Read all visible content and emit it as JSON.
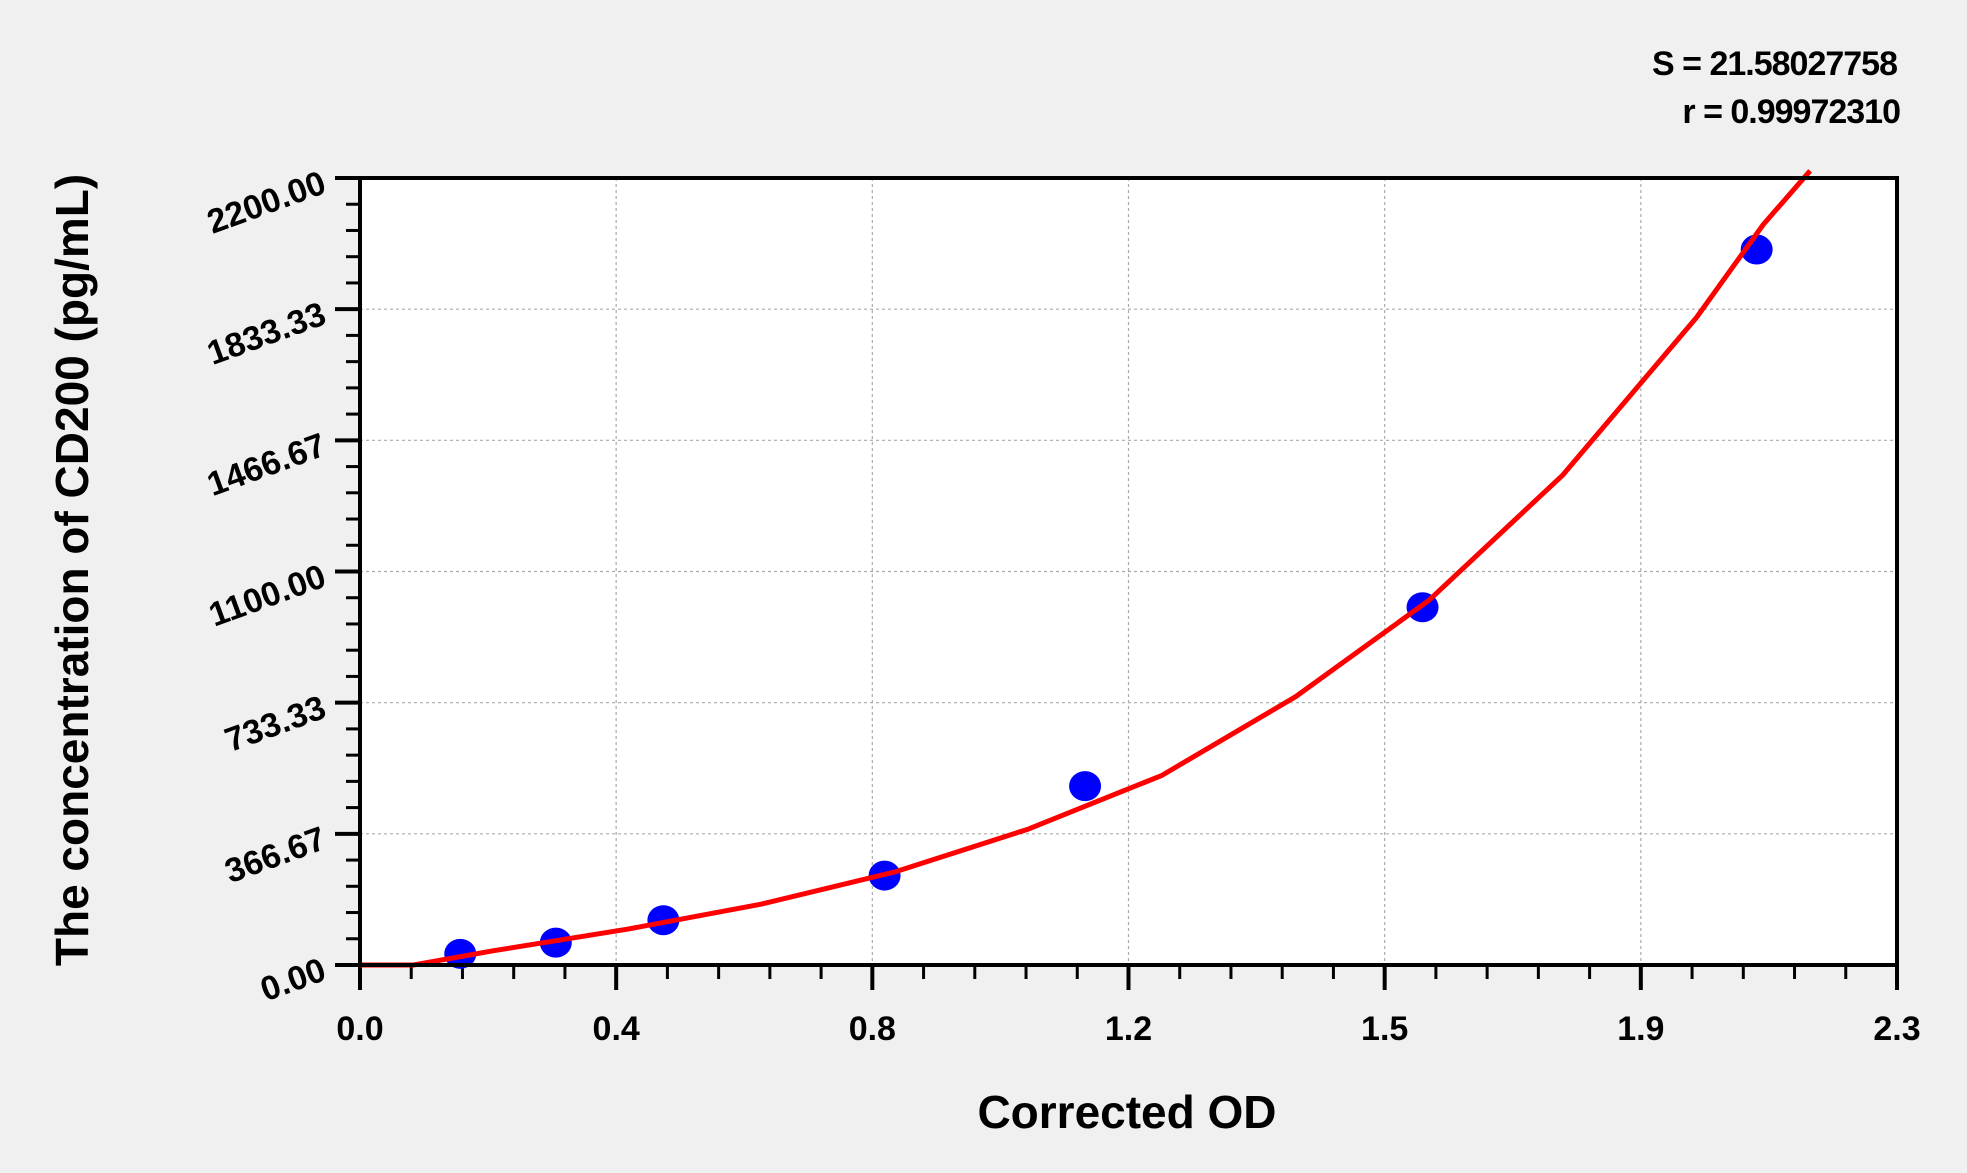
{
  "chart_data": {
    "type": "scatter",
    "title": "",
    "xlabel": "Corrected OD",
    "ylabel": "The concentration of CD200 (pg/mL)",
    "xlim": [
      0,
      2.3
    ],
    "ylim": [
      0,
      2200
    ],
    "x_ticks": [
      "0.0",
      "0.4",
      "0.8",
      "1.2",
      "1.5",
      "1.9",
      "2.3"
    ],
    "y_ticks": [
      "0.00",
      "366.67",
      "733.33",
      "1100.00",
      "1466.67",
      "1833.33",
      "2200.00"
    ],
    "grid": true,
    "annotations": [
      "S = 21.58027758",
      "r = 0.99972310"
    ],
    "points": {
      "x": [
        0.15,
        0.293,
        0.454,
        0.785,
        1.085,
        1.59,
        2.09
      ],
      "y": [
        31.25,
        62.5,
        125,
        250,
        500,
        1000,
        2000
      ],
      "color": "#0000ff"
    },
    "fit_curve": {
      "x": [
        0,
        0.08,
        0.2,
        0.4,
        0.6,
        0.8,
        1.0,
        1.2,
        1.4,
        1.6,
        1.8,
        2.0,
        2.1,
        2.17
      ],
      "y": [
        0,
        0,
        40,
        100,
        170,
        260,
        380,
        530,
        750,
        1020,
        1370,
        1810,
        2070,
        2220
      ],
      "color": "#ff0000"
    }
  }
}
